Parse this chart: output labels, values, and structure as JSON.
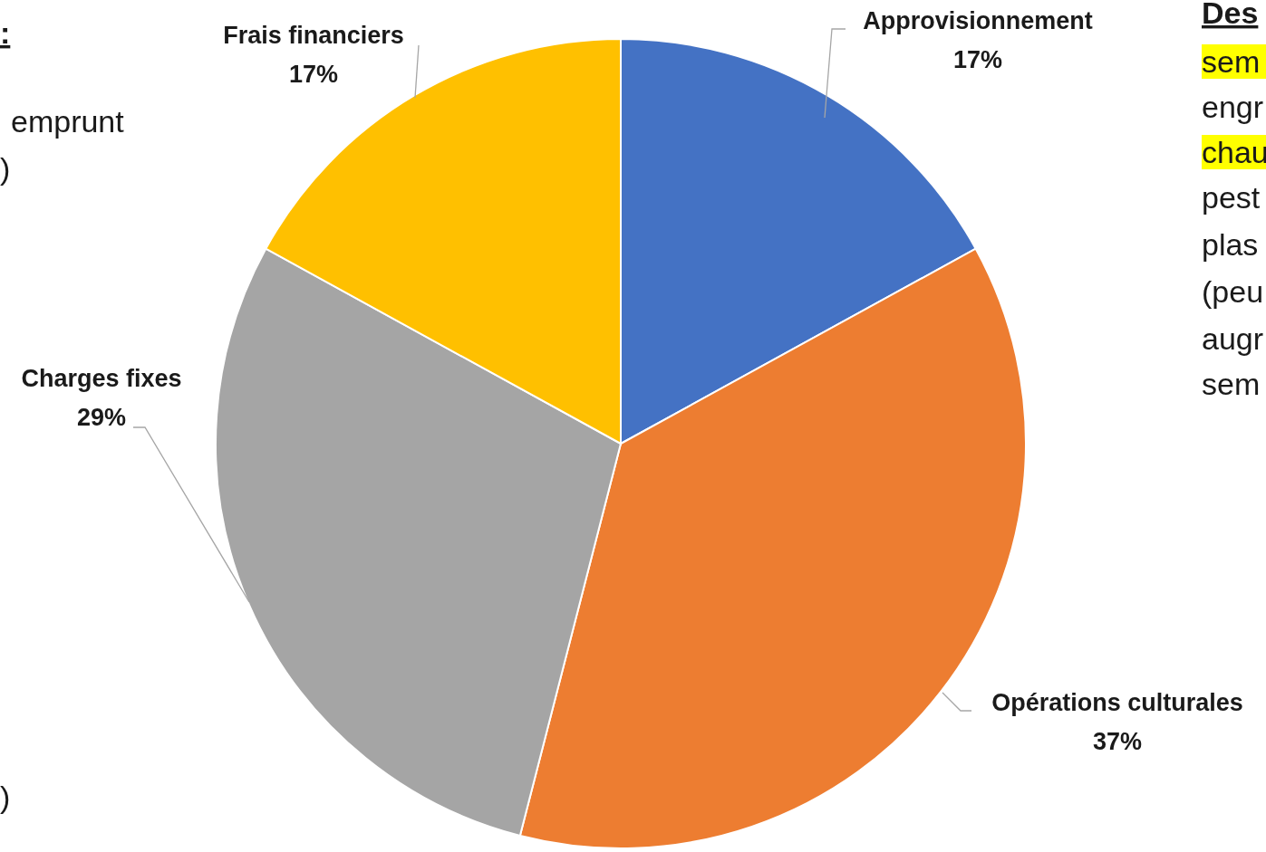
{
  "chart_data": {
    "type": "pie",
    "categories": [
      "Approvisionnement",
      "Opérations culturales",
      "Charges fixes",
      "Frais financiers"
    ],
    "values": [
      17,
      37,
      29,
      17
    ],
    "colors": [
      "#4472c4",
      "#ed7d31",
      "#a5a5a5",
      "#ffc000"
    ],
    "value_labels": [
      "17%",
      "37%",
      "29%",
      "17%"
    ],
    "annotations": [
      ":",
      "emprunt",
      ")",
      ")",
      "Des",
      "sem",
      "engr",
      "chau",
      "pest",
      "plas",
      "(peu",
      "augr",
      "sem"
    ]
  }
}
